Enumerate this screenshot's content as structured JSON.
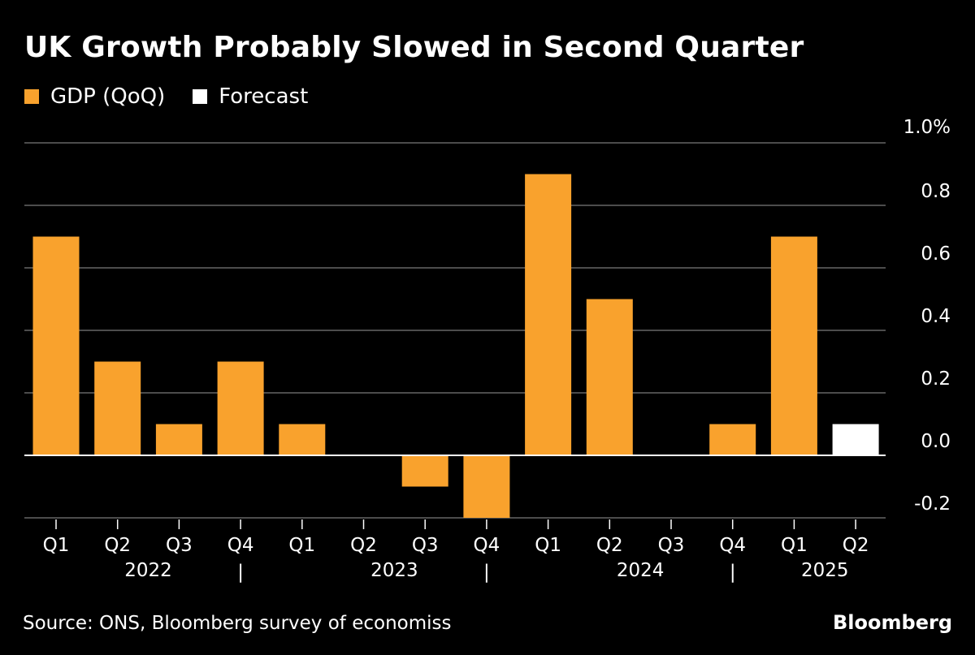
{
  "title": "UK Growth Probably Slowed in Second Quarter",
  "colors": {
    "gdp": "#f9a22d",
    "forecast": "#ffffff",
    "background": "#000000",
    "grid": "#666666",
    "zero": "#ffffff"
  },
  "legend": [
    {
      "label": "GDP (QoQ)",
      "color": "#f9a22d"
    },
    {
      "label": "Forecast",
      "color": "#ffffff"
    }
  ],
  "chart_data": {
    "type": "bar",
    "title": "UK Growth Probably Slowed in Second Quarter",
    "categories": [
      "Q1",
      "Q2",
      "Q3",
      "Q4",
      "Q1",
      "Q2",
      "Q3",
      "Q4",
      "Q1",
      "Q2",
      "Q3",
      "Q4",
      "Q1",
      "Q2"
    ],
    "series": [
      {
        "name": "GDP (QoQ)",
        "values": [
          0.7,
          0.3,
          0.1,
          0.3,
          0.1,
          0.0,
          -0.1,
          -0.2,
          0.9,
          0.5,
          0.0,
          0.1,
          0.7,
          null
        ]
      },
      {
        "name": "Forecast",
        "values": [
          null,
          null,
          null,
          null,
          null,
          null,
          null,
          null,
          null,
          null,
          null,
          null,
          null,
          0.1
        ]
      }
    ],
    "years": [
      {
        "label": "2022",
        "start_index": 0,
        "end_index": 3
      },
      {
        "label": "2023",
        "start_index": 4,
        "end_index": 7
      },
      {
        "label": "2024",
        "start_index": 8,
        "end_index": 11
      },
      {
        "label": "2025",
        "start_index": 12,
        "end_index": 13
      }
    ],
    "year_separator": "|",
    "ylim": [
      -0.2,
      1.0
    ],
    "yticks": [
      1.0,
      0.8,
      0.6,
      0.4,
      0.2,
      0.0,
      -0.2
    ],
    "ytick_labels": [
      "1.0%",
      "0.8",
      "0.6",
      "0.4",
      "0.2",
      "0.0",
      "-0.2"
    ],
    "xlabel": "",
    "ylabel": "",
    "grid": true,
    "legend_position": "top-left"
  },
  "footer": {
    "source": "Source: ONS, Bloomberg survey of economiss",
    "brand": "Bloomberg"
  }
}
